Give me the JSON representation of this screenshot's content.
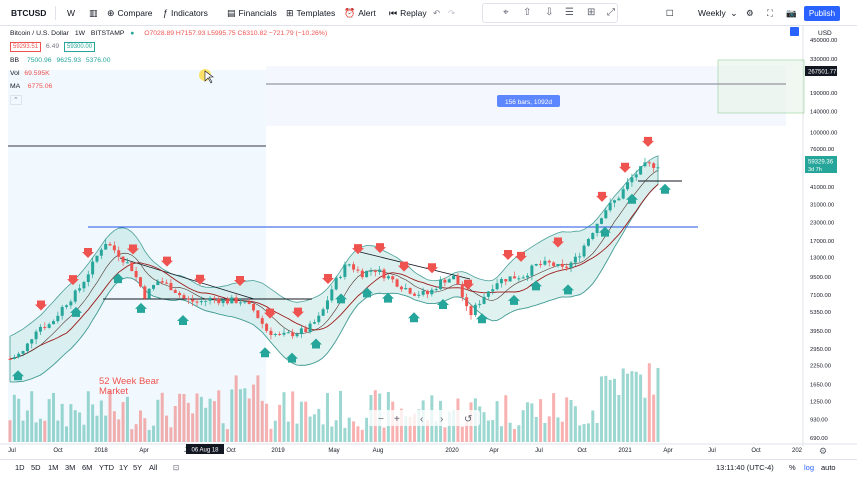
{
  "toolbar": {
    "symbol": "BTCUSD",
    "interval": "W",
    "compare": "Compare",
    "indicators": "Indicators",
    "financials": "Financials",
    "templates": "Templates",
    "alert": "Alert",
    "replay": "Replay",
    "timeframe": "Weekly",
    "publish": "Publish"
  },
  "legend": {
    "title": "Bitcoin / U.S. Dollar",
    "interval": "1W",
    "exchange": "BITSTAMP",
    "ohlc": "O7028.89 H7157.93 L5995.75 C6310.82 −721.79 (−10.26%)",
    "sell_price": "59293.51",
    "spread": "6.49",
    "buy_price": "59300.00",
    "bb": {
      "label": "BB",
      "v1": "7500.96",
      "v2": "9625.93",
      "v3": "5376.00"
    },
    "vol": {
      "label": "Vol",
      "v1": "69.595K"
    },
    "ma": {
      "label": "MA",
      "v1": "6775.06"
    }
  },
  "chart": {
    "currency": "USD",
    "range_label": "156 bars, 1092d",
    "crosshair_price": "267501.77",
    "last_price": "59329.36",
    "last_countdown": "3d 7h",
    "date_marker": "06 Aug 18",
    "annotation": [
      "52 Week Bear",
      "Market"
    ],
    "price_scale": [
      "450000.00",
      "330000.00",
      "260000.00",
      "190000.00",
      "140000.00",
      "100000.00",
      "76000.00",
      "56000.00",
      "41000.00",
      "31000.00",
      "23000.00",
      "17000.00",
      "13000.00",
      "9500.00",
      "7100.00",
      "5350.00",
      "3950.00",
      "2950.00",
      "2250.00",
      "1650.00",
      "1250.00",
      "930.00",
      "690.00"
    ],
    "time_scale": [
      "Jul",
      "Oct",
      "2018",
      "Apr",
      "Jul",
      "Oct",
      "2019",
      "May",
      "Aug",
      "2020",
      "Apr",
      "Jul",
      "Oct",
      "2021",
      "Apr",
      "Jul",
      "Oct",
      "202"
    ],
    "colors": {
      "up": "#26a69a",
      "down": "#ef5350",
      "bands": "#5aa9a3",
      "hline": "#1e53e5",
      "ma": "#9c1c1c"
    }
  },
  "chart_data": {
    "type": "candlestick",
    "title": "Bitcoin / U.S. Dollar, 1W, BITSTAMP",
    "series": [
      {
        "name": "BTCUSD",
        "close_approx": [
          2500,
          2800,
          4200,
          4400,
          6000,
          7500,
          11000,
          17000,
          14000,
          11000,
          7000,
          9000,
          8000,
          6500,
          6300,
          6700,
          6400,
          6500,
          5600,
          4000,
          3600,
          3800,
          4000,
          5000,
          8500,
          12000,
          10000,
          10800,
          9500,
          8200,
          7300,
          7200,
          9000,
          9500,
          5000,
          6800,
          8800,
          9400,
          9700,
          11500,
          11800,
          10700,
          13000,
          19000,
          28000,
          34000,
          47000,
          58000,
          59300
        ]
      }
    ],
    "ylabel": "USD"
  },
  "bottombar": {
    "ranges": [
      "1D",
      "5D",
      "1M",
      "3M",
      "6M",
      "YTD",
      "1Y",
      "5Y",
      "All"
    ],
    "time": "13:11:40 (UTC-4)",
    "pct": "%",
    "log": "log",
    "auto": "auto"
  }
}
